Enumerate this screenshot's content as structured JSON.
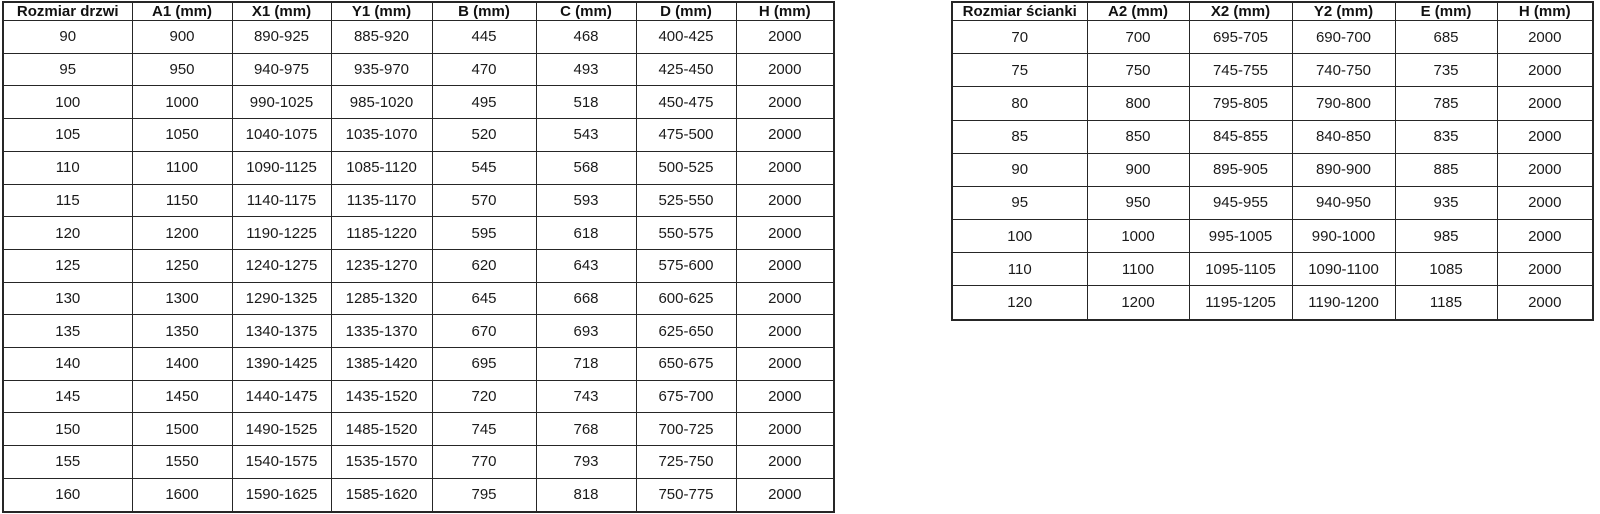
{
  "palette": {
    "background": "#ffffff",
    "border": "#262626",
    "text": "#1a1a1a"
  },
  "tables": [
    {
      "name": "door-dimensions",
      "headers": [
        "Rozmiar drzwi",
        "A1 (mm)",
        "X1 (mm)",
        "Y1 (mm)",
        "B (mm)",
        "C (mm)",
        "D (mm)",
        "H (mm)"
      ],
      "rows": [
        [
          "90",
          "900",
          "890-925",
          "885-920",
          "445",
          "468",
          "400-425",
          "2000"
        ],
        [
          "95",
          "950",
          "940-975",
          "935-970",
          "470",
          "493",
          "425-450",
          "2000"
        ],
        [
          "100",
          "1000",
          "990-1025",
          "985-1020",
          "495",
          "518",
          "450-475",
          "2000"
        ],
        [
          "105",
          "1050",
          "1040-1075",
          "1035-1070",
          "520",
          "543",
          "475-500",
          "2000"
        ],
        [
          "110",
          "1100",
          "1090-1125",
          "1085-1120",
          "545",
          "568",
          "500-525",
          "2000"
        ],
        [
          "115",
          "1150",
          "1140-1175",
          "1135-1170",
          "570",
          "593",
          "525-550",
          "2000"
        ],
        [
          "120",
          "1200",
          "1190-1225",
          "1185-1220",
          "595",
          "618",
          "550-575",
          "2000"
        ],
        [
          "125",
          "1250",
          "1240-1275",
          "1235-1270",
          "620",
          "643",
          "575-600",
          "2000"
        ],
        [
          "130",
          "1300",
          "1290-1325",
          "1285-1320",
          "645",
          "668",
          "600-625",
          "2000"
        ],
        [
          "135",
          "1350",
          "1340-1375",
          "1335-1370",
          "670",
          "693",
          "625-650",
          "2000"
        ],
        [
          "140",
          "1400",
          "1390-1425",
          "1385-1420",
          "695",
          "718",
          "650-675",
          "2000"
        ],
        [
          "145",
          "1450",
          "1440-1475",
          "1435-1520",
          "720",
          "743",
          "675-700",
          "2000"
        ],
        [
          "150",
          "1500",
          "1490-1525",
          "1485-1520",
          "745",
          "768",
          "700-725",
          "2000"
        ],
        [
          "155",
          "1550",
          "1540-1575",
          "1535-1570",
          "770",
          "793",
          "725-750",
          "2000"
        ],
        [
          "160",
          "1600",
          "1590-1625",
          "1585-1620",
          "795",
          "818",
          "750-775",
          "2000"
        ]
      ]
    },
    {
      "name": "wall-dimensions",
      "headers": [
        "Rozmiar ścianki",
        "A2 (mm)",
        "X2 (mm)",
        "Y2 (mm)",
        "E (mm)",
        "H (mm)"
      ],
      "rows": [
        [
          "70",
          "700",
          "695-705",
          "690-700",
          "685",
          "2000"
        ],
        [
          "75",
          "750",
          "745-755",
          "740-750",
          "735",
          "2000"
        ],
        [
          "80",
          "800",
          "795-805",
          "790-800",
          "785",
          "2000"
        ],
        [
          "85",
          "850",
          "845-855",
          "840-850",
          "835",
          "2000"
        ],
        [
          "90",
          "900",
          "895-905",
          "890-900",
          "885",
          "2000"
        ],
        [
          "95",
          "950",
          "945-955",
          "940-950",
          "935",
          "2000"
        ],
        [
          "100",
          "1000",
          "995-1005",
          "990-1000",
          "985",
          "2000"
        ],
        [
          "110",
          "1100",
          "1095-1105",
          "1090-1100",
          "1085",
          "2000"
        ],
        [
          "120",
          "1200",
          "1195-1205",
          "1190-1200",
          "1185",
          "2000"
        ]
      ]
    }
  ]
}
